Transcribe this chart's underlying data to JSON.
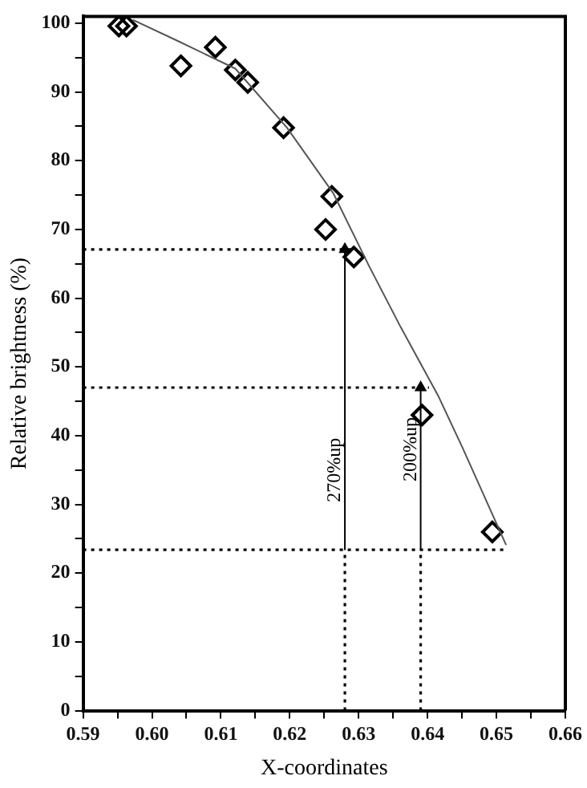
{
  "chart_data": {
    "type": "scatter",
    "xlabel": "X-coordinates",
    "ylabel": "Relative brightness (%)",
    "xlim": [
      0.59,
      0.66
    ],
    "ylim": [
      0,
      101
    ],
    "xticks": [
      0.59,
      {
        "value": 0.595,
        "label": null
      },
      "0.60",
      {
        "value": 0.605,
        "label": null
      },
      0.61,
      {
        "value": 0.615,
        "label": null
      },
      0.62,
      {
        "value": 0.625,
        "label": null
      },
      0.63,
      {
        "value": 0.635,
        "label": null
      },
      0.64,
      {
        "value": 0.645,
        "label": null
      },
      0.65,
      {
        "value": 0.655,
        "label": null
      },
      0.66
    ],
    "yticks": [
      0,
      {
        "value": 5,
        "label": null
      },
      10,
      {
        "value": 15,
        "label": null
      },
      20,
      {
        "value": 25,
        "label": null
      },
      30,
      {
        "value": 35,
        "label": null
      },
      40,
      {
        "value": 45,
        "label": null
      },
      50,
      {
        "value": 55,
        "label": null
      },
      60,
      {
        "value": 65,
        "label": null
      },
      70,
      {
        "value": 75,
        "label": null
      },
      80,
      {
        "value": 85,
        "label": null
      },
      90,
      {
        "value": 95,
        "label": null
      },
      100
    ],
    "grid": false,
    "legend": false,
    "series": [
      {
        "type": "line",
        "color": "#555555",
        "marker": "none",
        "line_style": "solid",
        "x": [
          0.5972,
          0.6038,
          0.6121,
          0.6196,
          0.6263,
          0.6315,
          0.6361,
          0.6415,
          0.6451,
          0.6514
        ],
        "values": [
          100.5,
          97.4,
          93.4,
          84.8,
          75.3,
          64.7,
          55.8,
          45.9,
          38.2,
          24.1
        ]
      },
      {
        "color": "#000000",
        "marker": "diamond",
        "x": [
          0.5952,
          0.5963,
          0.6042,
          0.6092,
          0.6121,
          0.6139,
          0.6191,
          0.6261,
          0.6252,
          0.6293,
          0.6392,
          0.6494
        ],
        "values": [
          99.6,
          99.6,
          93.8,
          96.5,
          93.2,
          91.4,
          84.8,
          74.8,
          70.0,
          66.0,
          43.0,
          26.0
        ]
      },
      {
        "type": "line",
        "color": "#000000",
        "marker": "none",
        "line_style": "dotted",
        "x": [
          0.59,
          0.6292
        ],
        "values": [
          67.1,
          67.1
        ]
      },
      {
        "type": "line",
        "color": "#000000",
        "marker": "none",
        "line_style": "dotted",
        "x": [
          0.59,
          0.6402
        ],
        "values": [
          47.0,
          47.0
        ]
      },
      {
        "type": "line",
        "color": "#000000",
        "marker": "none",
        "line_style": "dotted",
        "x": [
          0.59,
          0.6512
        ],
        "values": [
          23.4,
          23.4
        ]
      },
      {
        "type": "line",
        "color": "#000000",
        "marker": "none",
        "line_style": "dotted",
        "x": [
          0.628,
          0.628
        ],
        "values": [
          0,
          23.4
        ]
      },
      {
        "type": "line",
        "color": "#000000",
        "marker": "none",
        "line_style": "dotted",
        "x": [
          0.639,
          0.639
        ],
        "values": [
          0,
          23.4
        ]
      },
      {
        "type": "line",
        "color": "#000000",
        "marker": "triangle",
        "line_style": "solid",
        "x": [
          0.628,
          0.628
        ],
        "values": [
          23.4,
          67.1
        ]
      },
      {
        "type": "line",
        "color": "#000000",
        "marker": "triangle",
        "line_style": "solid",
        "x": [
          0.639,
          0.639
        ],
        "values": [
          23.4,
          47.0
        ]
      }
    ],
    "annotations": [
      {
        "text": "270%up",
        "x": 0.628,
        "y": 35
      },
      {
        "text": "200%up",
        "x": 0.639,
        "y": 38
      }
    ]
  }
}
